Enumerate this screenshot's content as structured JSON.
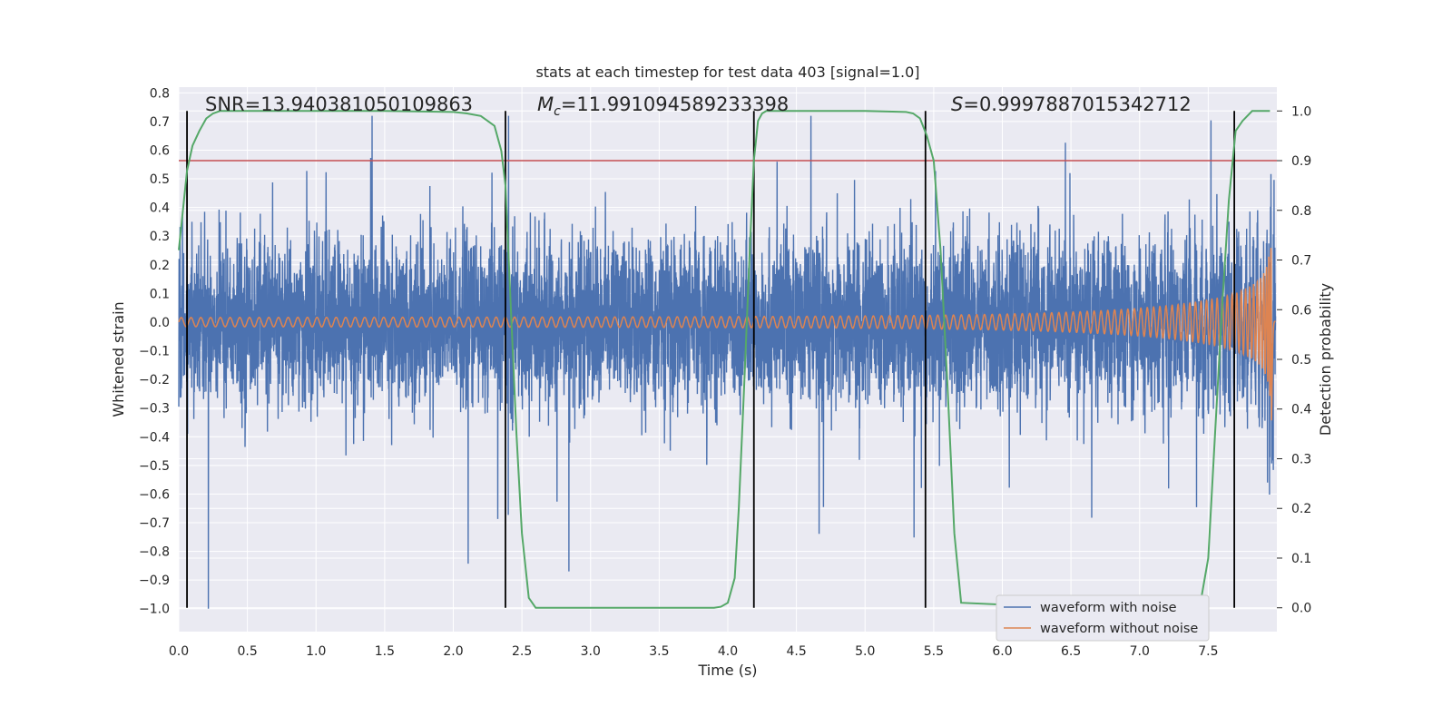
{
  "chart_data": {
    "type": "line",
    "title": "stats at each timestep for test data 403 [signal=1.0]",
    "xlabel": "Time (s)",
    "ylabel": "Whitened strain",
    "y2label": "Detection probability",
    "xlim": [
      0.0,
      8.0
    ],
    "ylim": [
      -1.08,
      0.82
    ],
    "y2lim": [
      -0.048,
      1.048
    ],
    "xticks": [
      "0.0",
      "0.5",
      "1.0",
      "1.5",
      "2.0",
      "2.5",
      "3.0",
      "3.5",
      "4.0",
      "4.5",
      "5.0",
      "5.5",
      "6.0",
      "6.5",
      "7.0",
      "7.5"
    ],
    "xtick_values": [
      0.0,
      0.5,
      1.0,
      1.5,
      2.0,
      2.5,
      3.0,
      3.5,
      4.0,
      4.5,
      5.0,
      5.5,
      6.0,
      6.5,
      7.0,
      7.5
    ],
    "yticks": [
      "0.8",
      "0.7",
      "0.6",
      "0.5",
      "0.4",
      "0.3",
      "0.2",
      "0.1",
      "0.0",
      "−0.1",
      "−0.2",
      "−0.3",
      "−0.4",
      "−0.5",
      "−0.6",
      "−0.7",
      "−0.8",
      "−0.9",
      "−1.0"
    ],
    "ytick_values": [
      0.8,
      0.7,
      0.6,
      0.5,
      0.4,
      0.3,
      0.2,
      0.1,
      0.0,
      -0.1,
      -0.2,
      -0.3,
      -0.4,
      -0.5,
      -0.6,
      -0.7,
      -0.8,
      -0.9,
      -1.0
    ],
    "y2ticks": [
      "1.0",
      "0.9",
      "0.8",
      "0.7",
      "0.6",
      "0.5",
      "0.4",
      "0.3",
      "0.2",
      "0.1",
      "0.0"
    ],
    "y2tick_values": [
      1.0,
      0.9,
      0.8,
      0.7,
      0.6,
      0.5,
      0.4,
      0.3,
      0.2,
      0.1,
      0.0
    ],
    "annotations": {
      "snr": "SNR=13.940381050109863",
      "mc_symbol": "M",
      "mc_sub": "c",
      "mc_value": "=11.991094589233398",
      "s_symbol": "S",
      "s_value": "=0.9997887015342712"
    },
    "series": [
      {
        "name": "waveform with noise",
        "color": "#4c72b0"
      },
      {
        "name": "waveform without noise",
        "color": "#dd8452"
      }
    ],
    "detection_probability": {
      "color": "#55a868",
      "x": [
        0.0,
        0.06,
        0.1,
        0.15,
        0.2,
        0.25,
        0.3,
        0.4,
        0.6,
        1.0,
        1.5,
        2.0,
        2.1,
        2.2,
        2.25,
        2.3,
        2.35,
        2.38,
        2.42,
        2.46,
        2.5,
        2.55,
        2.6,
        2.8,
        3.5,
        3.9,
        3.95,
        4.0,
        4.05,
        4.08,
        4.12,
        4.16,
        4.19,
        4.22,
        4.25,
        4.28,
        4.32,
        4.4,
        5.0,
        5.3,
        5.35,
        5.4,
        5.45,
        5.5,
        5.55,
        5.6,
        5.65,
        5.7,
        6.5,
        7.3,
        7.35,
        7.4,
        7.45,
        7.5,
        7.55,
        7.6,
        7.65,
        7.7,
        7.75,
        7.82,
        7.85,
        7.9,
        7.95
      ],
      "y": [
        0.72,
        0.88,
        0.93,
        0.96,
        0.985,
        0.995,
        1.0,
        1.0,
        1.0,
        1.0,
        1.0,
        0.998,
        0.995,
        0.99,
        0.98,
        0.97,
        0.92,
        0.85,
        0.6,
        0.35,
        0.15,
        0.02,
        0.0,
        0.0,
        0.0,
        0.0,
        0.002,
        0.01,
        0.06,
        0.2,
        0.45,
        0.72,
        0.9,
        0.98,
        0.995,
        1.0,
        1.0,
        1.0,
        1.0,
        0.998,
        0.995,
        0.985,
        0.95,
        0.9,
        0.72,
        0.45,
        0.15,
        0.01,
        0.0,
        0.0,
        0.005,
        0.015,
        0.02,
        0.1,
        0.35,
        0.6,
        0.82,
        0.96,
        0.98,
        1.0,
        1.0,
        1.0,
        1.0
      ]
    },
    "threshold": {
      "value": 0.9,
      "color": "#c44e52"
    },
    "vlines": [
      0.06,
      2.38,
      4.19,
      5.44,
      7.69
    ],
    "legend_position": "lower-right",
    "grid": true
  }
}
